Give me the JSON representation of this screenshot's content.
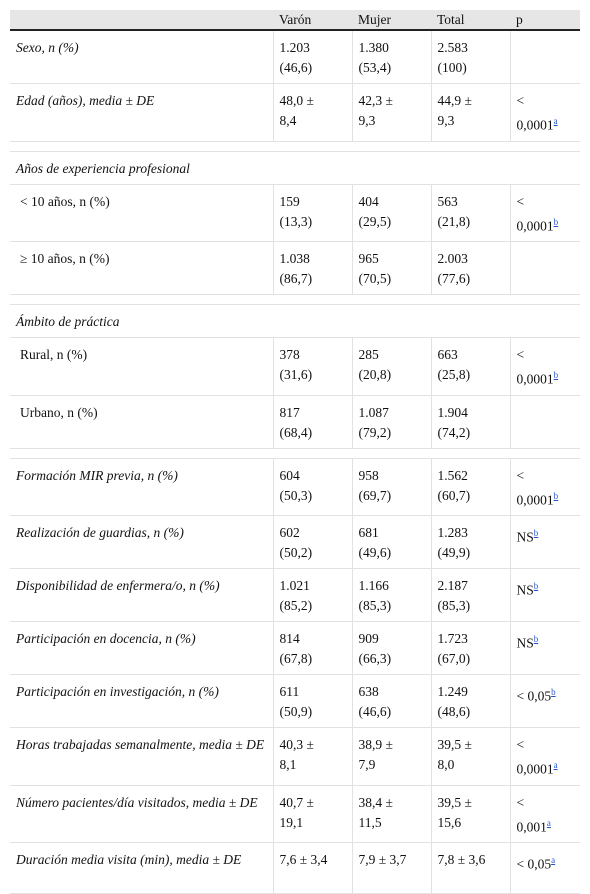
{
  "table": {
    "columns": [
      "Varón",
      "Mujer",
      "Total",
      "p"
    ],
    "groups": [
      {
        "rows": [
          {
            "label": "Sexo, n (%)",
            "cells": [
              [
                "1.203",
                "(46,6)"
              ],
              [
                "1.380",
                "(53,4)"
              ],
              [
                "2.583",
                "(100)"
              ],
              null
            ]
          },
          {
            "label": "Edad (años), media ± DE",
            "cells": [
              [
                "48,0 ±",
                "8,4"
              ],
              [
                "42,3 ±",
                "9,3"
              ],
              [
                "44,9 ±",
                "9,3"
              ],
              {
                "lines": [
                  "<",
                  "0,0001"
                ],
                "note": "a"
              }
            ]
          }
        ]
      },
      {
        "title": "Años de experiencia profesional",
        "rows": [
          {
            "label": "< 10 años, n (%)",
            "cells": [
              [
                "159",
                "(13,3)"
              ],
              [
                "404",
                "(29,5)"
              ],
              [
                "563",
                "(21,8)"
              ],
              {
                "lines": [
                  "<",
                  "0,0001"
                ],
                "note": "b"
              }
            ]
          },
          {
            "label": "≥ 10 años, n (%)",
            "cells": [
              [
                "1.038",
                "(86,7)"
              ],
              [
                "965",
                "(70,5)"
              ],
              [
                "2.003",
                "(77,6)"
              ],
              null
            ]
          }
        ]
      },
      {
        "title": "Ámbito de práctica",
        "rows": [
          {
            "label": "Rural, n (%)",
            "cells": [
              [
                "378",
                "(31,6)"
              ],
              [
                "285",
                "(20,8)"
              ],
              [
                "663",
                "(25,8)"
              ],
              {
                "lines": [
                  "<",
                  "0,0001"
                ],
                "note": "b"
              }
            ]
          },
          {
            "label": "Urbano, n (%)",
            "cells": [
              [
                "817",
                "(68,4)"
              ],
              [
                "1.087",
                "(79,2)"
              ],
              [
                "1.904",
                "(74,2)"
              ],
              null
            ]
          }
        ]
      },
      {
        "rows": [
          {
            "label": "Formación MIR previa, n (%)",
            "cells": [
              [
                "604",
                "(50,3)"
              ],
              [
                "958",
                "(69,7)"
              ],
              [
                "1.562",
                "(60,7)"
              ],
              {
                "lines": [
                  "<",
                  "0,0001"
                ],
                "note": "b"
              }
            ]
          },
          {
            "label": "Realización de guardias, n (%)",
            "cells": [
              [
                "602",
                "(50,2)"
              ],
              [
                "681",
                "(49,6)"
              ],
              [
                "1.283",
                "(49,9)"
              ],
              {
                "lines": [
                  "NS"
                ],
                "note": "b"
              }
            ]
          },
          {
            "label": "Disponibilidad de enfermera/o, n (%)",
            "cells": [
              [
                "1.021",
                "(85,2)"
              ],
              [
                "1.166",
                "(85,3)"
              ],
              [
                "2.187",
                "(85,3)"
              ],
              {
                "lines": [
                  "NS"
                ],
                "note": "b"
              }
            ]
          },
          {
            "label": "Participación en docencia, n (%)",
            "cells": [
              [
                "814",
                "(67,8)"
              ],
              [
                "909",
                "(66,3)"
              ],
              [
                "1.723",
                "(67,0)"
              ],
              {
                "lines": [
                  "NS"
                ],
                "note": "b"
              }
            ]
          },
          {
            "label": "Participación en investigación, n (%)",
            "cells": [
              [
                "611",
                "(50,9)"
              ],
              [
                "638",
                "(46,6)"
              ],
              [
                "1.249",
                "(48,6)"
              ],
              {
                "lines": [
                  "< 0,05"
                ],
                "note": "b"
              }
            ]
          },
          {
            "label": "Horas trabajadas semanalmente, media ± DE",
            "cells": [
              [
                "40,3 ±",
                "8,1"
              ],
              [
                "38,9 ±",
                "7,9"
              ],
              [
                "39,5 ±",
                "8,0"
              ],
              {
                "lines": [
                  "<",
                  "0,0001"
                ],
                "note": "a"
              }
            ]
          },
          {
            "label": "Número pacientes/día visitados, media ± DE",
            "cells": [
              [
                "40,7 ±",
                "19,1"
              ],
              [
                "38,4 ±",
                "11,5"
              ],
              [
                "39,5 ±",
                "15,6"
              ],
              {
                "lines": [
                  "<",
                  "0,001"
                ],
                "note": "a"
              }
            ]
          },
          {
            "label": "Duración media visita (min), media ± DE",
            "cells": [
              [
                "7,6 ± 3,4"
              ],
              [
                "7,9 ± 3,7"
              ],
              [
                "7,8 ± 3,6"
              ],
              {
                "lines": [
                  "< 0,05"
                ],
                "note": "a"
              }
            ]
          }
        ]
      }
    ]
  }
}
